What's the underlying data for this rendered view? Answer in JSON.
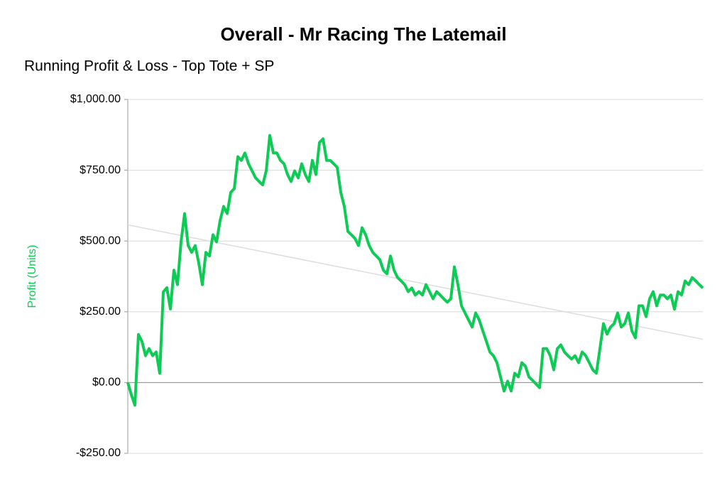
{
  "chart_data": {
    "type": "line",
    "title": "Overall - Mr Racing The Latemail",
    "subtitle": "Running Profit & Loss - Top Tote + SP",
    "ylabel": "Profit (Units)",
    "color": "#0ecb55",
    "values": [
      0,
      -43,
      -80,
      170,
      145,
      95,
      120,
      95,
      108,
      33,
      320,
      335,
      260,
      397,
      346,
      497,
      597,
      484,
      460,
      484,
      422,
      346,
      460,
      447,
      522,
      497,
      572,
      622,
      597,
      672,
      685,
      798,
      785,
      811,
      773,
      748,
      723,
      710,
      698,
      748,
      873,
      811,
      811,
      785,
      773,
      735,
      710,
      748,
      723,
      773,
      735,
      710,
      785,
      735,
      848,
      861,
      785,
      785,
      773,
      760,
      672,
      622,
      534,
      522,
      509,
      484,
      547,
      522,
      484,
      460,
      447,
      434,
      397,
      384,
      447,
      397,
      371,
      359,
      346,
      321,
      334,
      309,
      321,
      309,
      346,
      321,
      296,
      321,
      309,
      296,
      284,
      296,
      409,
      346,
      271,
      246,
      221,
      196,
      246,
      221,
      183,
      146,
      108,
      95,
      70,
      20,
      -30,
      5,
      -30,
      33,
      20,
      70,
      58,
      20,
      8,
      -5,
      -18,
      120,
      120,
      95,
      45,
      120,
      133,
      108,
      95,
      83,
      95,
      70,
      108,
      95,
      70,
      45,
      33,
      120,
      208,
      171,
      196,
      208,
      246,
      196,
      208,
      246,
      183,
      158,
      271,
      271,
      233,
      296,
      321,
      271,
      309,
      309,
      296,
      309,
      259,
      321,
      309,
      359,
      346,
      371,
      359,
      346,
      334
    ],
    "trendline": {
      "values": [
        557,
        153
      ],
      "color": "#dddddd"
    },
    "ylim": [
      -250,
      1000
    ],
    "yticks": [
      {
        "value": -250,
        "label": "-$250.00"
      },
      {
        "value": 0,
        "label": "$0.00"
      },
      {
        "value": 250,
        "label": "$250.00"
      },
      {
        "value": 500,
        "label": "$500.00"
      },
      {
        "value": 750,
        "label": "$750.00"
      },
      {
        "value": 1000,
        "label": "$1,000.00"
      }
    ],
    "grid": true
  }
}
